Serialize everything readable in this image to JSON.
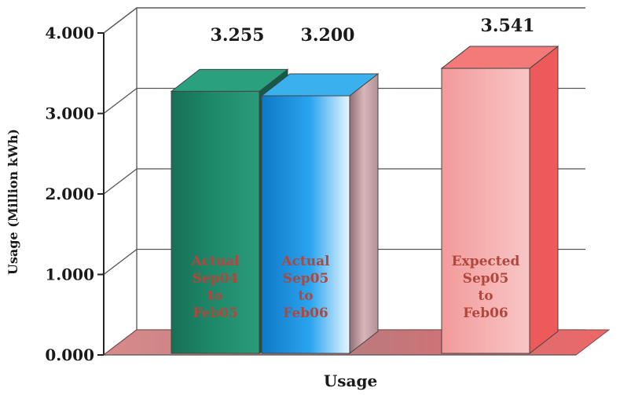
{
  "chart_data": {
    "type": "bar",
    "title": "",
    "xlabel": "Usage",
    "ylabel": "Usage (Million kWh)",
    "ylim": [
      0,
      4
    ],
    "yticks": [
      "0.000",
      "1.000",
      "2.000",
      "3.000",
      "4.000"
    ],
    "grid": true,
    "series": [
      {
        "label_lines": [
          "Actual",
          "Sep04",
          "to",
          "Feb05"
        ],
        "value": 3.255,
        "value_label": "3.255",
        "color": "#1f8a6b",
        "side_color": "#0f5c47",
        "top_color": "#2aa07f"
      },
      {
        "label_lines": [
          "Actual",
          "Sep05",
          "to",
          "Feb06"
        ],
        "value": 3.2,
        "value_label": "3.200",
        "color": "#1f9be8",
        "side_color": "#c9a3a6",
        "top_color": "#3bb0ef"
      },
      {
        "label_lines": [
          "Expected",
          "Sep05",
          "to",
          "Feb06"
        ],
        "value": 3.541,
        "value_label": "3.541",
        "color": "#f5a3a3",
        "side_color": "#ee5a5a",
        "top_color": "#f47a7a"
      }
    ]
  }
}
